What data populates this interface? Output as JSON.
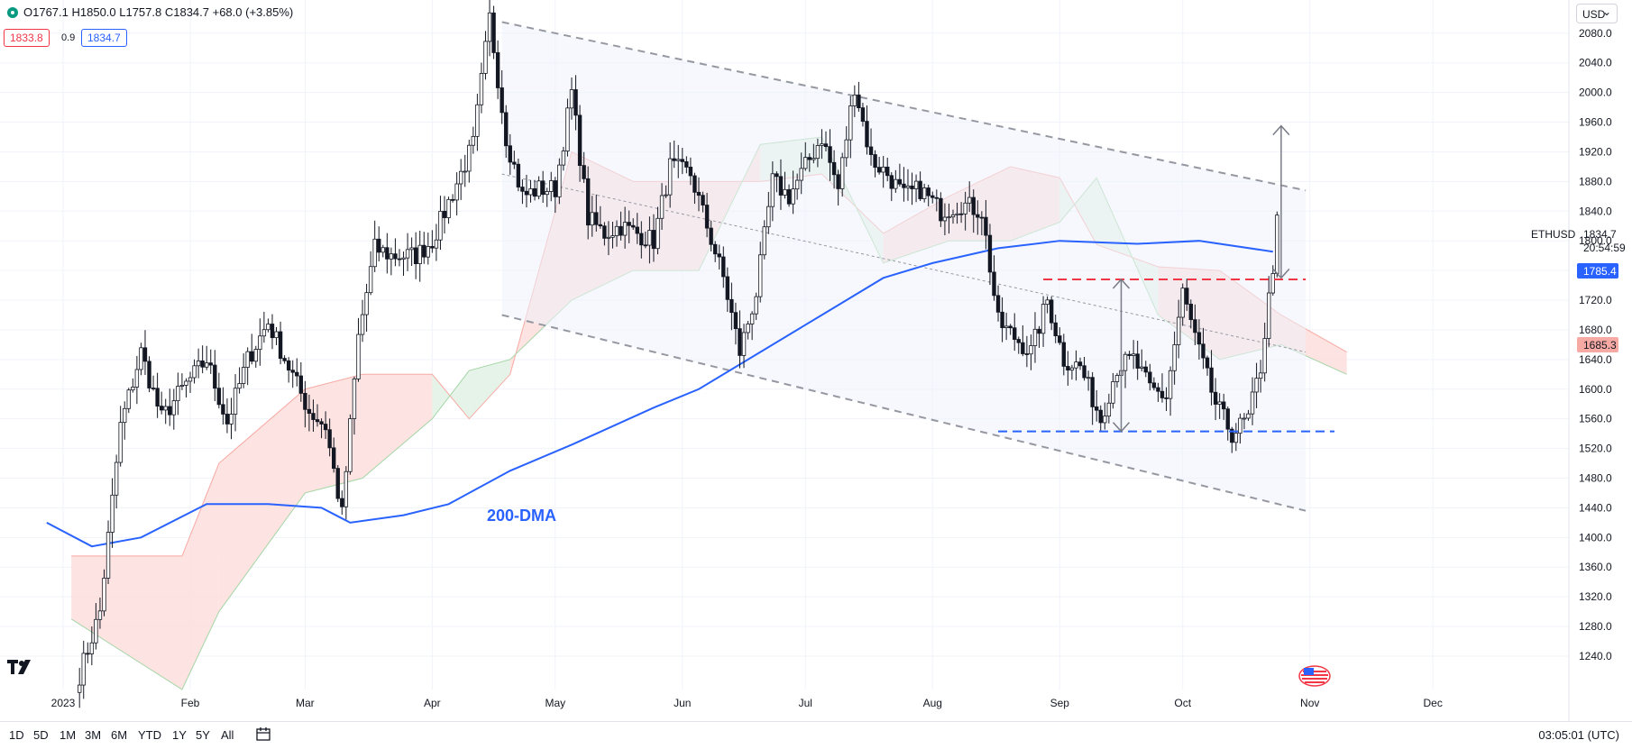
{
  "header": {
    "ohlc_label": "O1767.1 H1850.0 L1757.8 C1834.7 +68.0 (+3.85%)",
    "sell_price": "1833.8",
    "spread": "0.9",
    "buy_price": "1834.7",
    "currency": "USD"
  },
  "symbol": {
    "name": "ETHUSD",
    "price": "1834.7",
    "countdown": "20:54:59"
  },
  "price_tags": {
    "ma": "1785.4",
    "cloud": "1685.3"
  },
  "annotation": "200-DMA",
  "ranges": [
    "1D",
    "5D",
    "1M",
    "3M",
    "6M",
    "YTD",
    "1Y",
    "5Y",
    "All"
  ],
  "clock": "03:05:01 (UTC)",
  "colors": {
    "up": "#089981",
    "down": "#f23645",
    "candle": "#131722",
    "ma": "#2962ff",
    "cloud_bull": "#e3f2e6",
    "cloud_bear": "#fde0de",
    "channel": "#9598a1",
    "resistance": "#f23645",
    "support": "#2962ff"
  },
  "icons": [
    "tradingview-logo-icon",
    "calendar-icon",
    "us-flag-icon",
    "status-dot-icon"
  ],
  "chart_data": {
    "type": "candlestick",
    "symbol": "ETHUSD",
    "y_ticks": [
      1240,
      1280,
      1320,
      1360,
      1400,
      1440,
      1480,
      1520,
      1560,
      1600,
      1640,
      1680,
      1720,
      1760,
      1800,
      1840,
      1880,
      1920,
      1960,
      2000,
      2040,
      2080
    ],
    "x_ticks": [
      "2023",
      "Feb",
      "Mar",
      "Apr",
      "May",
      "Jun",
      "Jul",
      "Aug",
      "Sep",
      "Oct",
      "Nov",
      "Dec"
    ],
    "ylim": [
      1195,
      2115
    ],
    "candles": [
      {
        "date": "2023-01-05",
        "close": 1215
      },
      {
        "date": "2023-01-10",
        "close": 1300
      },
      {
        "date": "2023-01-15",
        "close": 1550
      },
      {
        "date": "2023-01-20",
        "close": 1650
      },
      {
        "date": "2023-01-25",
        "close": 1560
      },
      {
        "date": "2023-01-30",
        "close": 1600
      },
      {
        "date": "2023-02-05",
        "close": 1640
      },
      {
        "date": "2023-02-10",
        "close": 1555
      },
      {
        "date": "2023-02-15",
        "close": 1640
      },
      {
        "date": "2023-02-20",
        "close": 1690
      },
      {
        "date": "2023-02-25",
        "close": 1630
      },
      {
        "date": "2023-03-02",
        "close": 1570
      },
      {
        "date": "2023-03-06",
        "close": 1550
      },
      {
        "date": "2023-03-10",
        "close": 1430
      },
      {
        "date": "2023-03-14",
        "close": 1670
      },
      {
        "date": "2023-03-18",
        "close": 1790
      },
      {
        "date": "2023-03-22",
        "close": 1780
      },
      {
        "date": "2023-03-28",
        "close": 1780
      },
      {
        "date": "2023-04-01",
        "close": 1800
      },
      {
        "date": "2023-04-06",
        "close": 1865
      },
      {
        "date": "2023-04-11",
        "close": 1930
      },
      {
        "date": "2023-04-15",
        "close": 2100
      },
      {
        "date": "2023-04-19",
        "close": 1940
      },
      {
        "date": "2023-04-23",
        "close": 1860
      },
      {
        "date": "2023-04-27",
        "close": 1870
      },
      {
        "date": "2023-05-01",
        "close": 1870
      },
      {
        "date": "2023-05-05",
        "close": 2000
      },
      {
        "date": "2023-05-09",
        "close": 1830
      },
      {
        "date": "2023-05-13",
        "close": 1810
      },
      {
        "date": "2023-05-17",
        "close": 1820
      },
      {
        "date": "2023-05-21",
        "close": 1810
      },
      {
        "date": "2023-05-25",
        "close": 1800
      },
      {
        "date": "2023-05-29",
        "close": 1900
      },
      {
        "date": "2023-06-03",
        "close": 1890
      },
      {
        "date": "2023-06-07",
        "close": 1820
      },
      {
        "date": "2023-06-11",
        "close": 1750
      },
      {
        "date": "2023-06-15",
        "close": 1650
      },
      {
        "date": "2023-06-19",
        "close": 1730
      },
      {
        "date": "2023-06-23",
        "close": 1880
      },
      {
        "date": "2023-06-27",
        "close": 1860
      },
      {
        "date": "2023-07-01",
        "close": 1900
      },
      {
        "date": "2023-07-05",
        "close": 1940
      },
      {
        "date": "2023-07-09",
        "close": 1870
      },
      {
        "date": "2023-07-13",
        "close": 2010
      },
      {
        "date": "2023-07-17",
        "close": 1910
      },
      {
        "date": "2023-07-21",
        "close": 1890
      },
      {
        "date": "2023-07-25",
        "close": 1860
      },
      {
        "date": "2023-07-29",
        "close": 1870
      },
      {
        "date": "2023-08-03",
        "close": 1840
      },
      {
        "date": "2023-08-08",
        "close": 1850
      },
      {
        "date": "2023-08-13",
        "close": 1840
      },
      {
        "date": "2023-08-17",
        "close": 1690
      },
      {
        "date": "2023-08-21",
        "close": 1670
      },
      {
        "date": "2023-08-25",
        "close": 1650
      },
      {
        "date": "2023-08-29",
        "close": 1720
      },
      {
        "date": "2023-09-02",
        "close": 1640
      },
      {
        "date": "2023-09-06",
        "close": 1630
      },
      {
        "date": "2023-09-11",
        "close": 1560
      },
      {
        "date": "2023-09-15",
        "close": 1630
      },
      {
        "date": "2023-09-19",
        "close": 1640
      },
      {
        "date": "2023-09-23",
        "close": 1600
      },
      {
        "date": "2023-09-27",
        "close": 1590
      },
      {
        "date": "2023-10-01",
        "close": 1730
      },
      {
        "date": "2023-10-05",
        "close": 1650
      },
      {
        "date": "2023-10-09",
        "close": 1580
      },
      {
        "date": "2023-10-13",
        "close": 1540
      },
      {
        "date": "2023-10-17",
        "close": 1560
      },
      {
        "date": "2023-10-20",
        "close": 1630
      },
      {
        "date": "2023-10-23",
        "close": 1767
      },
      {
        "date": "2023-10-24",
        "close": 1834.7
      }
    ],
    "ma200": {
      "name": "200-DMA",
      "points": [
        {
          "date": "2022-12-28",
          "value": 1420
        },
        {
          "date": "2023-01-08",
          "value": 1388
        },
        {
          "date": "2023-01-20",
          "value": 1400
        },
        {
          "date": "2023-02-05",
          "value": 1445
        },
        {
          "date": "2023-02-20",
          "value": 1445
        },
        {
          "date": "2023-03-05",
          "value": 1440
        },
        {
          "date": "2023-03-12",
          "value": 1420
        },
        {
          "date": "2023-03-25",
          "value": 1430
        },
        {
          "date": "2023-04-05",
          "value": 1445
        },
        {
          "date": "2023-04-20",
          "value": 1490
        },
        {
          "date": "2023-05-05",
          "value": 1525
        },
        {
          "date": "2023-05-25",
          "value": 1575
        },
        {
          "date": "2023-06-05",
          "value": 1600
        },
        {
          "date": "2023-06-20",
          "value": 1650
        },
        {
          "date": "2023-07-05",
          "value": 1700
        },
        {
          "date": "2023-07-20",
          "value": 1750
        },
        {
          "date": "2023-08-01",
          "value": 1770
        },
        {
          "date": "2023-08-17",
          "value": 1790
        },
        {
          "date": "2023-09-01",
          "value": 1800
        },
        {
          "date": "2023-09-20",
          "value": 1796
        },
        {
          "date": "2023-10-05",
          "value": 1800
        },
        {
          "date": "2023-10-23",
          "value": 1785.4
        }
      ]
    },
    "ichimoku_cloud": [
      {
        "date": "2023-01-03",
        "a": 1290,
        "b": 1375
      },
      {
        "date": "2023-01-30",
        "a": 1195,
        "b": 1375
      },
      {
        "date": "2023-02-08",
        "a": 1300,
        "b": 1500
      },
      {
        "date": "2023-03-01",
        "a": 1460,
        "b": 1600
      },
      {
        "date": "2023-03-15",
        "a": 1480,
        "b": 1620
      },
      {
        "date": "2023-04-01",
        "a": 1560,
        "b": 1620
      },
      {
        "date": "2023-04-10",
        "a": 1625,
        "b": 1560
      },
      {
        "date": "2023-04-20",
        "a": 1640,
        "b": 1620
      },
      {
        "date": "2023-05-05",
        "a": 1720,
        "b": 1920
      },
      {
        "date": "2023-05-20",
        "a": 1760,
        "b": 1880
      },
      {
        "date": "2023-06-05",
        "a": 1760,
        "b": 1880
      },
      {
        "date": "2023-06-20",
        "a": 1930,
        "b": 1880
      },
      {
        "date": "2023-07-05",
        "a": 1940,
        "b": 1890
      },
      {
        "date": "2023-07-20",
        "a": 1770,
        "b": 1810
      },
      {
        "date": "2023-08-05",
        "a": 1800,
        "b": 1860
      },
      {
        "date": "2023-08-20",
        "a": 1800,
        "b": 1900
      },
      {
        "date": "2023-09-01",
        "a": 1825,
        "b": 1885
      },
      {
        "date": "2023-09-10",
        "a": 1885,
        "b": 1795
      },
      {
        "date": "2023-09-25",
        "a": 1700,
        "b": 1765
      },
      {
        "date": "2023-10-10",
        "a": 1640,
        "b": 1760
      },
      {
        "date": "2023-10-25",
        "a": 1660,
        "b": 1700
      },
      {
        "date": "2023-11-10",
        "a": 1620,
        "b": 1650
      }
    ],
    "channel_upper": [
      {
        "date": "2023-04-18",
        "value": 2095
      },
      {
        "date": "2023-10-31",
        "value": 1868
      }
    ],
    "channel_lower": [
      {
        "date": "2023-04-18",
        "value": 1700
      },
      {
        "date": "2023-10-31",
        "value": 1436
      }
    ],
    "channel_mid": [
      {
        "date": "2023-04-18",
        "value": 1890
      },
      {
        "date": "2023-10-31",
        "value": 1650
      }
    ],
    "resistance": {
      "value": 1748,
      "from": "2023-08-28",
      "to": "2023-10-31"
    },
    "support": {
      "value": 1543,
      "from": "2023-08-17",
      "to": "2023-11-07"
    },
    "range_arrow": {
      "date": "2023-09-16",
      "from": 1543,
      "to": 1748
    },
    "target_arrow": {
      "date": "2023-10-25",
      "from": 1750,
      "to": 1955
    }
  }
}
